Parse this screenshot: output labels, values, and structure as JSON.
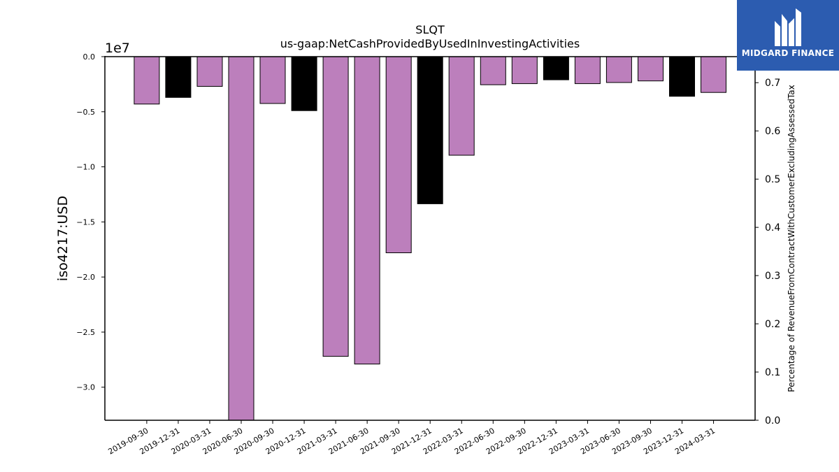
{
  "chart_data": {
    "type": "bar",
    "title": "SLQT",
    "subtitle": "us-gaap:NetCashProvidedByUsedInInvestingActivities",
    "ylabel": "iso4217:USD",
    "y_offset_label": "1e7",
    "y2label": "Percentage of RevenueFromContractWithCustomerExcludingAssessedTax",
    "ylim": [
      -33000000,
      0
    ],
    "y2lim": [
      0,
      0.754
    ],
    "yticks": [
      0,
      -5000000,
      -10000000,
      -15000000,
      -20000000,
      -25000000,
      -30000000
    ],
    "ytick_labels": [
      "0.0",
      "−0.5",
      "−1.0",
      "−1.5",
      "−2.0",
      "−2.5",
      "−3.0"
    ],
    "y2ticks": [
      0.0,
      0.1,
      0.2,
      0.3,
      0.4,
      0.5,
      0.6,
      0.7
    ],
    "y2tick_labels": [
      "0.0",
      "0.1",
      "0.2",
      "0.3",
      "0.4",
      "0.5",
      "0.6",
      "0.7"
    ],
    "categories": [
      "2019-09-30",
      "2019-12-31",
      "2020-03-31",
      "2020-06-30",
      "2020-09-30",
      "2020-12-31",
      "2021-03-31",
      "2021-06-30",
      "2021-09-30",
      "2021-12-31",
      "2022-03-31",
      "2022-06-30",
      "2022-09-30",
      "2022-12-31",
      "2023-03-31",
      "2023-06-30",
      "2023-09-30",
      "2023-12-31",
      "2024-03-31"
    ],
    "values": [
      -4300000,
      -3700000,
      -2700000,
      -33000000,
      -4250000,
      -4900000,
      -27200000,
      -27900000,
      -17800000,
      -13350000,
      -8950000,
      -2550000,
      -2450000,
      -2100000,
      -2450000,
      -2350000,
      -2200000,
      -3600000,
      -3250000
    ],
    "bar_colors": [
      "#bc7fbc",
      "#000000",
      "#bc7fbc",
      "#bc7fbc",
      "#bc7fbc",
      "#000000",
      "#bc7fbc",
      "#bc7fbc",
      "#bc7fbc",
      "#000000",
      "#bc7fbc",
      "#bc7fbc",
      "#bc7fbc",
      "#000000",
      "#bc7fbc",
      "#bc7fbc",
      "#bc7fbc",
      "#000000",
      "#bc7fbc"
    ],
    "grid": false,
    "legend": "none"
  },
  "logo": {
    "text": "MIDGARD FINANCE",
    "background": "#2c5cb0"
  }
}
